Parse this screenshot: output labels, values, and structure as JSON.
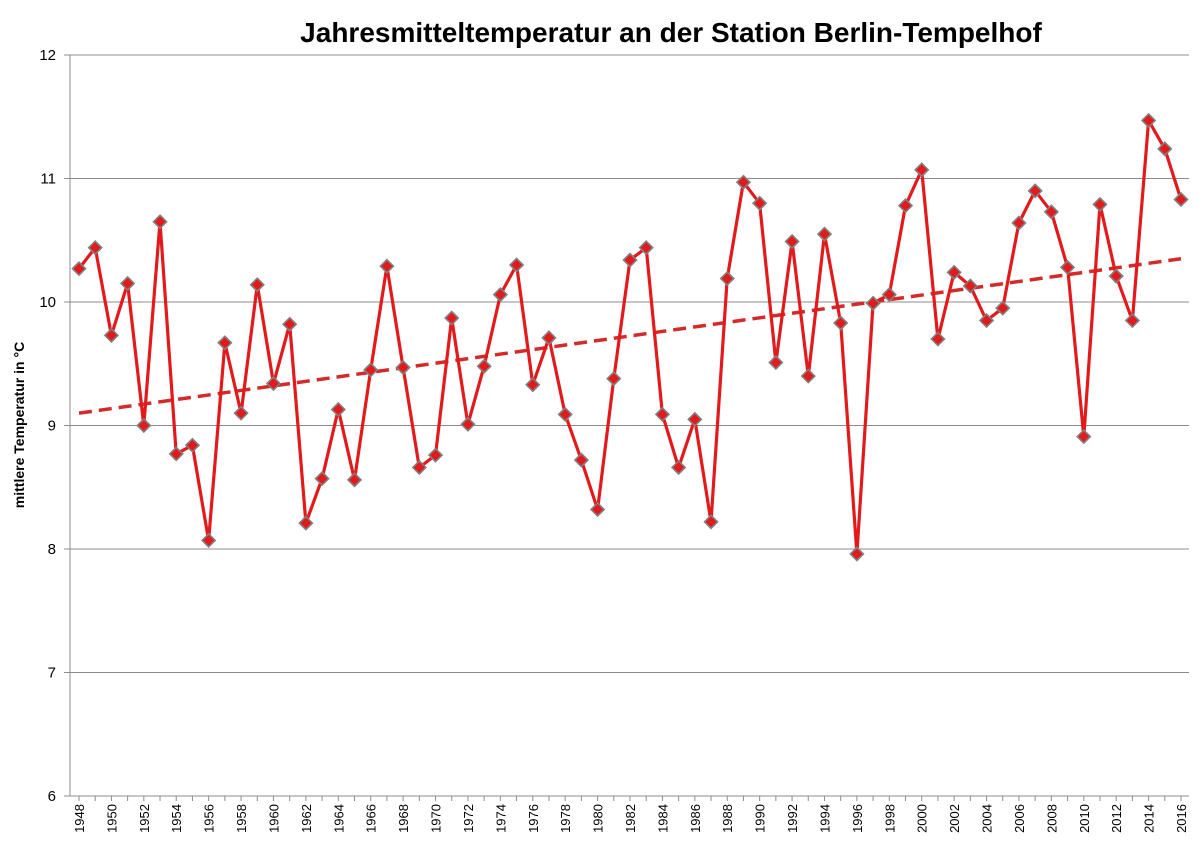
{
  "chart_data": {
    "type": "line",
    "title": "Jahresmitteltemperatur an der Station Berlin-Tempelhof",
    "ylabel": "mittlere Temperatur in °C",
    "xlabel": "",
    "ylim": [
      6,
      12
    ],
    "yticks": [
      6,
      7,
      8,
      9,
      10,
      11,
      12
    ],
    "xticks": [
      1948,
      1950,
      1952,
      1954,
      1956,
      1958,
      1960,
      1962,
      1964,
      1966,
      1968,
      1970,
      1972,
      1974,
      1976,
      1978,
      1980,
      1982,
      1984,
      1986,
      1988,
      1990,
      1992,
      1994,
      1996,
      1998,
      2000,
      2002,
      2004,
      2006,
      2008,
      2010,
      2012,
      2014,
      2016
    ],
    "xlim": [
      1948,
      2016
    ],
    "grid": true,
    "colors": {
      "series": "#e31a1c",
      "marker_edge": "#808080",
      "trend": "#d42a2a",
      "grid": "#8c8c8c",
      "axis": "#8c8c8c"
    },
    "series": [
      {
        "x": [
          1948,
          1949,
          1950,
          1951,
          1952,
          1953,
          1954,
          1955,
          1956,
          1957,
          1958,
          1959,
          1960,
          1961,
          1962,
          1963,
          1964,
          1965,
          1966,
          1967,
          1968,
          1969,
          1970,
          1971,
          1972,
          1973,
          1974,
          1975,
          1976,
          1977,
          1978,
          1979,
          1980,
          1981,
          1982,
          1983,
          1984,
          1985,
          1986,
          1987,
          1988,
          1989,
          1990,
          1991,
          1992,
          1993,
          1994,
          1995,
          1996,
          1997,
          1998,
          1999,
          2000,
          2001,
          2002,
          2003,
          2004,
          2005,
          2006,
          2007,
          2008,
          2009,
          2010,
          2011,
          2012,
          2013,
          2014,
          2015,
          2016
        ],
        "values": [
          10.27,
          10.44,
          9.73,
          10.15,
          9.0,
          10.65,
          8.77,
          8.84,
          8.07,
          9.67,
          9.1,
          10.14,
          9.34,
          9.82,
          8.21,
          8.57,
          9.13,
          8.56,
          9.45,
          10.29,
          9.47,
          8.66,
          8.76,
          9.87,
          9.01,
          9.48,
          10.06,
          10.3,
          9.33,
          9.71,
          9.09,
          8.72,
          8.32,
          9.38,
          10.34,
          10.44,
          9.09,
          8.66,
          9.05,
          8.22,
          10.19,
          10.97,
          10.8,
          9.51,
          10.49,
          9.4,
          10.55,
          9.83,
          7.96,
          9.99,
          10.06,
          10.78,
          11.07,
          9.7,
          10.24,
          10.13,
          9.85,
          9.95,
          10.64,
          10.9,
          10.73,
          10.28,
          8.91,
          10.79,
          10.21,
          9.85,
          11.47,
          11.24,
          10.83
        ]
      }
    ],
    "trendline": {
      "type": "linear",
      "x": [
        1948,
        2016
      ],
      "values": [
        9.1,
        10.35
      ]
    }
  }
}
